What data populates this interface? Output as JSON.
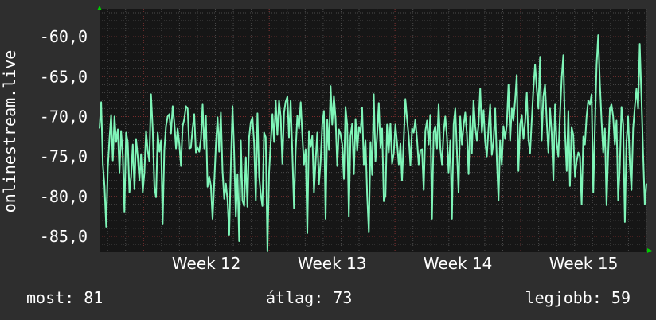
{
  "colors": {
    "background": "#2e2e2e",
    "plot_background": "#161616",
    "grid_major": "#7a2a2a",
    "grid_minor": "#4a4a4a",
    "series_line": "#7ff5b8",
    "axis_arrow": "#00cc00",
    "text": "#ffffff"
  },
  "stats": {
    "now": "most: 81",
    "average": "átlag: 73",
    "best": "legjobb: 59"
  },
  "chart_data": {
    "type": "line",
    "title": "",
    "xlabel": "",
    "ylabel": "onlinestream.live",
    "y_ticks": [
      "-60,0",
      "-65,0",
      "-70,0",
      "-75,0",
      "-80,0",
      "-85,0"
    ],
    "y_tick_values": [
      -60,
      -65,
      -70,
      -75,
      -80,
      -85
    ],
    "ylim": [
      -86.9,
      -56.5
    ],
    "x_ticks": [
      "Week 12",
      "Week 13",
      "Week 14",
      "Week 15"
    ],
    "x_tick_positions": [
      12,
      13,
      14,
      15
    ],
    "xlim": [
      11.65,
      16.0
    ],
    "grid": true,
    "series": [
      {
        "name": "",
        "x_start": 11.65,
        "x_end": 16.0,
        "values": [
          -71.5,
          -68.2,
          -76.0,
          -78.8,
          -83.8,
          -76.5,
          -72.8,
          -69.8,
          -75.5,
          -70.0,
          -73.2,
          -71.6,
          -77.0,
          -71.8,
          -74.8,
          -81.9,
          -72.0,
          -73.2,
          -79.5,
          -77.5,
          -73.5,
          -79.1,
          -72.8,
          -75.0,
          -78.0,
          -74.7,
          -79.5,
          -77.0,
          -71.8,
          -74.3,
          -75.6,
          -67.2,
          -71.5,
          -78.8,
          -80.1,
          -72.0,
          -74.4,
          -73.0,
          -83.5,
          -74.2,
          -71.2,
          -70.0,
          -69.7,
          -72.1,
          -68.7,
          -70.8,
          -74.0,
          -71.5,
          -73.4,
          -76.2,
          -71.2,
          -70.3,
          -68.7,
          -69.0,
          -74.0,
          -73.9,
          -71.5,
          -69.7,
          -74.5,
          -73.9,
          -74.4,
          -72.8,
          -68.5,
          -74.0,
          -69.9,
          -78.8,
          -77.5,
          -78.7,
          -82.8,
          -78.3,
          -73.5,
          -70.1,
          -74.4,
          -69.5,
          -76.8,
          -80.3,
          -78.4,
          -80.5,
          -84.8,
          -76.0,
          -68.7,
          -74.5,
          -82.5,
          -77.2,
          -85.6,
          -73.0,
          -80.5,
          -81.2,
          -75.1,
          -81.3,
          -72.6,
          -70.7,
          -70.1,
          -73.3,
          -80.5,
          -69.6,
          -77.5,
          -79.8,
          -81.2,
          -72.0,
          -72.6,
          -86.8,
          -77.0,
          -73.2,
          -69.7,
          -73.2,
          -68.0,
          -72.3,
          -68.0,
          -70.1,
          -75.9,
          -69.5,
          -68.1,
          -67.5,
          -72.6,
          -68.0,
          -74.5,
          -81.5,
          -74.2,
          -69.9,
          -71.5,
          -68.2,
          -72.5,
          -76.0,
          -74.1,
          -84.6,
          -71.8,
          -73.8,
          -72.4,
          -79.5,
          -75.5,
          -72.0,
          -78.5,
          -75.7,
          -71.0,
          -69.3,
          -82.8,
          -70.4,
          -74.2,
          -66.2,
          -71.0,
          -67.4,
          -70.2,
          -76.2,
          -71.6,
          -72.2,
          -73.5,
          -77.8,
          -68.8,
          -71.0,
          -82.5,
          -72.4,
          -70.9,
          -77.2,
          -70.3,
          -74.3,
          -71.3,
          -72.0,
          -68.9,
          -76.0,
          -73.0,
          -79.8,
          -84.5,
          -73.2,
          -77.3,
          -67.2,
          -75.6,
          -72.4,
          -68.3,
          -73.9,
          -71.5,
          -80.6,
          -79.9,
          -71.0,
          -74.5,
          -70.9,
          -75.9,
          -74.6,
          -71.0,
          -73.3,
          -76.0,
          -73.4,
          -78.0,
          -73.0,
          -67.8,
          -70.3,
          -72.5,
          -76.1,
          -71.5,
          -72.0,
          -70.4,
          -72.8,
          -76.0,
          -74.2,
          -74.1,
          -79.2,
          -71.8,
          -70.5,
          -73.5,
          -69.8,
          -82.8,
          -72.0,
          -71.2,
          -74.0,
          -68.5,
          -74.0,
          -76.0,
          -72.0,
          -70.0,
          -72.5,
          -77.0,
          -73.0,
          -82.8,
          -71.0,
          -69.0,
          -74.5,
          -79.5,
          -70.0,
          -73.5,
          -71.2,
          -69.5,
          -72.2,
          -77.2,
          -70.0,
          -74.6,
          -68.0,
          -71.2,
          -73.0,
          -71.0,
          -66.5,
          -72.0,
          -69.2,
          -73.2,
          -75.0,
          -71.5,
          -68.5,
          -74.8,
          -73.2,
          -69.0,
          -75.5,
          -80.5,
          -73.0,
          -76.0,
          -71.2,
          -72.8,
          -71.0,
          -66.0,
          -73.0,
          -69.0,
          -70.5,
          -68.0,
          -64.8,
          -76.8,
          -71.0,
          -69.8,
          -72.8,
          -70.7,
          -67.0,
          -72.8,
          -74.6,
          -70.5,
          -66.5,
          -63.5,
          -66.5,
          -69.0,
          -62.5,
          -73.0,
          -67.5,
          -66.0,
          -70.5,
          -74.5,
          -69.0,
          -72.2,
          -78.0,
          -68.5,
          -73.2,
          -75.0,
          -69.8,
          -65.2,
          -62.3,
          -71.8,
          -76.8,
          -69.3,
          -78.7,
          -71.3,
          -72.3,
          -77.5,
          -75.6,
          -74.5,
          -75.0,
          -81.0,
          -72.5,
          -73.5,
          -70.0,
          -68.0,
          -68.5,
          -67.2,
          -79.5,
          -71.2,
          -63.5,
          -59.8,
          -65.8,
          -70.5,
          -74.5,
          -71.5,
          -81.1,
          -74.5,
          -69.0,
          -68.5,
          -70.0,
          -73.5,
          -70.5,
          -80.5,
          -76.2,
          -68.8,
          -71.0,
          -83.2,
          -73.2,
          -70.0,
          -75.8,
          -79.2,
          -71.5,
          -68.8,
          -66.5,
          -69.0,
          -60.9,
          -67.5,
          -74.5,
          -81.0,
          -78.4
        ]
      }
    ]
  }
}
